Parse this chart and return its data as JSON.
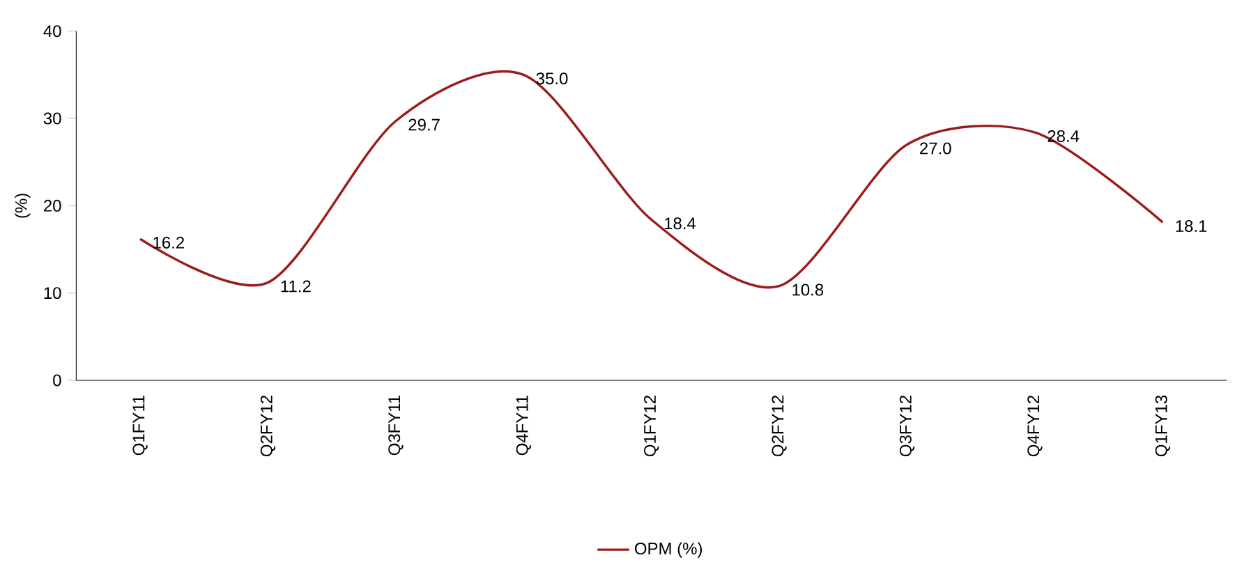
{
  "chart_data": {
    "type": "line",
    "ylabel": "(%)",
    "categories": [
      "Q1FY11",
      "Q2FY12",
      "Q3FY11",
      "Q4FY11",
      "Q1FY12",
      "Q2FY12",
      "Q3FY12",
      "Q4FY12",
      "Q1FY13"
    ],
    "series": [
      {
        "name": "OPM (%)",
        "color": "#9b1c1c",
        "values": [
          16.2,
          11.2,
          29.7,
          35.0,
          18.4,
          10.8,
          27.0,
          28.4,
          18.1
        ],
        "value_labels": [
          "16.2",
          "11.2",
          "29.7",
          "35.0",
          "18.4",
          "10.8",
          "27.0",
          "28.4",
          "18.1"
        ]
      }
    ],
    "ylim": [
      0,
      40
    ],
    "yticks": [
      0,
      10,
      20,
      30,
      40
    ],
    "legend": "bottom",
    "grid": false,
    "marker": "none",
    "line_style": "solid"
  }
}
